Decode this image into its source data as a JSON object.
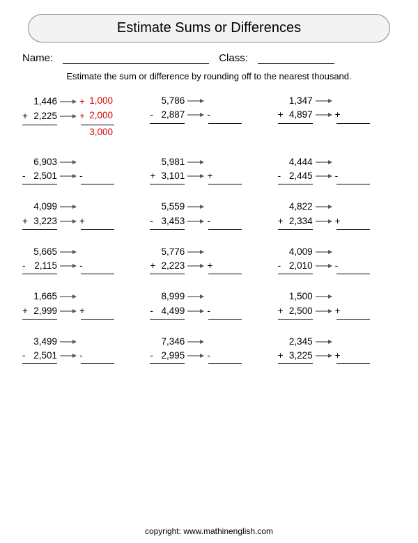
{
  "title": "Estimate Sums or Differences",
  "name_label": "Name:",
  "class_label": "Class:",
  "instructions": "Estimate the sum or difference by rounding off to the nearest thousand.",
  "example_rounded_top": "1,000",
  "example_rounded_bottom": "2,000",
  "example_result": "3,000",
  "problems": [
    {
      "top": "1,446",
      "bottom": "2,225",
      "op": "+"
    },
    {
      "top": "5,786",
      "bottom": "2,887",
      "op": "-"
    },
    {
      "top": "1,347",
      "bottom": "4,897",
      "op": "+"
    },
    {
      "top": "6,903",
      "bottom": "2,501",
      "op": "-"
    },
    {
      "top": "5,981",
      "bottom": "3,101",
      "op": "+"
    },
    {
      "top": "4,444",
      "bottom": "2,445",
      "op": "-"
    },
    {
      "top": "4,099",
      "bottom": "3,223",
      "op": "+"
    },
    {
      "top": "5,559",
      "bottom": "3,453",
      "op": "-"
    },
    {
      "top": "4,822",
      "bottom": "2,334",
      "op": "+"
    },
    {
      "top": "5,665",
      "bottom": "2,115",
      "op": "-"
    },
    {
      "top": "5,776",
      "bottom": "2,223",
      "op": "+"
    },
    {
      "top": "4,009",
      "bottom": "2,010",
      "op": "-"
    },
    {
      "top": "1,665",
      "bottom": "2,999",
      "op": "+"
    },
    {
      "top": "8,999",
      "bottom": "4,499",
      "op": "-"
    },
    {
      "top": "1,500",
      "bottom": "2,500",
      "op": "+"
    },
    {
      "top": "3,499",
      "bottom": "2,501",
      "op": "-"
    },
    {
      "top": "7,346",
      "bottom": "2,995",
      "op": "-"
    },
    {
      "top": "2,345",
      "bottom": "3,225",
      "op": "+"
    }
  ],
  "copyright": "copyright:   www.mathinenglish.com",
  "colors": {
    "example": "#d00",
    "text": "#000",
    "border": "#888"
  }
}
